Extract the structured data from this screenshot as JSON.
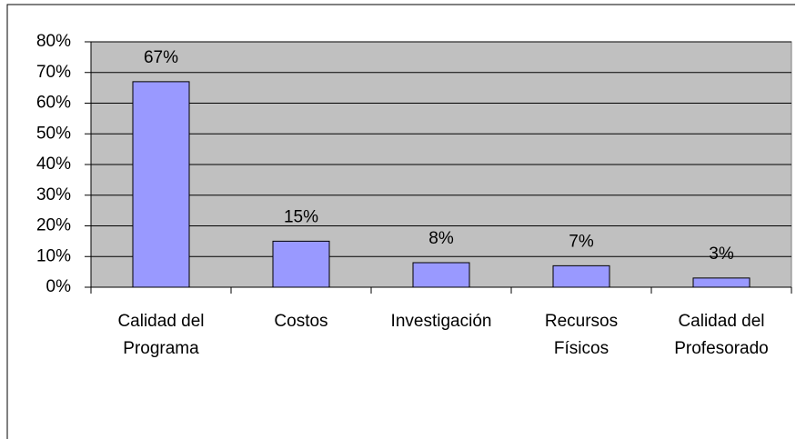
{
  "chart_data": {
    "type": "bar",
    "categories": [
      "Calidad del Programa",
      "Costos",
      "Investigación",
      "Recursos Físicos",
      "Calidad del Profesorado"
    ],
    "values": [
      67,
      15,
      8,
      7,
      3
    ],
    "value_labels": [
      "67%",
      "15%",
      "8%",
      "7%",
      "3%"
    ],
    "color": "#9999ff",
    "ylim": [
      0,
      80
    ],
    "yticks": [
      {
        "value": 0,
        "label": "0%"
      },
      {
        "value": 10,
        "label": "10%"
      },
      {
        "value": 20,
        "label": "20%"
      },
      {
        "value": 30,
        "label": "30%"
      },
      {
        "value": 40,
        "label": "40%"
      },
      {
        "value": 50,
        "label": "50%"
      },
      {
        "value": 60,
        "label": "60%"
      },
      {
        "value": 70,
        "label": "70%"
      },
      {
        "value": 80,
        "label": "80%"
      }
    ],
    "grid": true
  }
}
